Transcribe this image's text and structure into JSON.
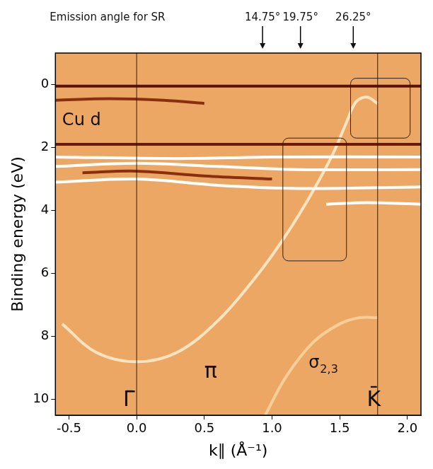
{
  "chart_data": {
    "type": "line",
    "x_label": "k∥ (Å⁻¹)",
    "y_label": "Binding energy (eV)",
    "xlim": [
      -0.6,
      2.1
    ],
    "ylim": [
      -1,
      10.5
    ],
    "xticks": [
      {
        "value": -0.5,
        "label": "-0.5"
      },
      {
        "value": 0,
        "label": "0.0"
      },
      {
        "value": 0.5,
        "label": "0.5"
      },
      {
        "value": 1,
        "label": "1.0"
      },
      {
        "value": 1.5,
        "label": "1.5"
      },
      {
        "value": 2,
        "label": "2.0"
      }
    ],
    "yticks": [
      0,
      2,
      4,
      6,
      8,
      10
    ],
    "grid": false,
    "legend": false,
    "series": [
      {
        "color": "#5a1206",
        "x": [
          -0.6,
          2.1
        ],
        "values": [
          0.05,
          0.05
        ]
      },
      {
        "color": "#6a1a08",
        "x": [
          -0.6,
          2.1
        ],
        "values": [
          1.9,
          1.9
        ]
      },
      {
        "color": "#ffffff",
        "x": [
          -0.6,
          0.3,
          1.0,
          2.1
        ],
        "values": [
          2.3,
          2.35,
          2.3,
          2.3
        ]
      },
      {
        "color": "#ffffff",
        "x": [
          -0.6,
          0.0,
          0.6,
          1.2,
          2.1
        ],
        "values": [
          2.6,
          2.5,
          2.6,
          2.7,
          2.7
        ]
      },
      {
        "color": "#8a2e10",
        "x": [
          -0.4,
          0.0,
          0.5,
          1.0
        ],
        "values": [
          2.8,
          2.75,
          2.9,
          3.0
        ]
      },
      {
        "color": "#ffffff",
        "x": [
          -0.6,
          0.0,
          0.6,
          1.2,
          2.1
        ],
        "values": [
          3.1,
          3.0,
          3.2,
          3.3,
          3.25
        ]
      },
      {
        "color": "#ffffff",
        "x": [
          1.4,
          1.7,
          2.1
        ],
        "values": [
          3.8,
          3.75,
          3.8
        ]
      },
      {
        "color": "#8a2e10",
        "x": [
          -0.6,
          -0.2,
          0.2,
          0.5
        ],
        "values": [
          0.5,
          0.45,
          0.5,
          0.6
        ]
      },
      {
        "color": "#fbe4bf",
        "x": [
          -0.55,
          -0.3,
          0.0,
          0.3,
          0.6,
          0.9,
          1.1,
          1.3,
          1.45,
          1.55,
          1.62,
          1.7,
          1.78
        ],
        "values": [
          7.6,
          8.5,
          8.8,
          8.5,
          7.5,
          6.0,
          4.8,
          3.4,
          2.2,
          1.2,
          0.55,
          0.4,
          0.6
        ]
      },
      {
        "color": "#f6cf98",
        "x": [
          0.95,
          1.1,
          1.3,
          1.5,
          1.65,
          1.78
        ],
        "values": [
          10.5,
          9.3,
          8.2,
          7.6,
          7.4,
          7.4
        ]
      }
    ],
    "vlines": [
      0,
      1.78
    ],
    "boxes": [
      {
        "x": [
          1.08,
          1.55
        ],
        "y": [
          1.7,
          5.6
        ]
      },
      {
        "x": [
          1.58,
          2.02
        ],
        "y": [
          -0.2,
          1.7
        ]
      }
    ],
    "annotations": [
      {
        "text": "Cu d",
        "x": -0.55,
        "y": 1.3
      },
      {
        "text": "π",
        "x": 0.5,
        "y": 9.3
      },
      {
        "text": "σ",
        "sub": "2,3",
        "x": 1.27,
        "y": 9.0
      },
      {
        "text": "Γ̄",
        "x": -0.1,
        "y": 10.2
      },
      {
        "text": "K̄",
        "x": 1.7,
        "y": 10.2
      }
    ],
    "top_title": "Emission angle for SR",
    "angles": [
      {
        "value": 14.75,
        "label": "14.75°",
        "k": 0.93
      },
      {
        "value": 19.75,
        "label": "19.75°",
        "k": 1.21
      },
      {
        "value": 26.25,
        "label": "26.25°",
        "k": 1.6
      }
    ]
  }
}
